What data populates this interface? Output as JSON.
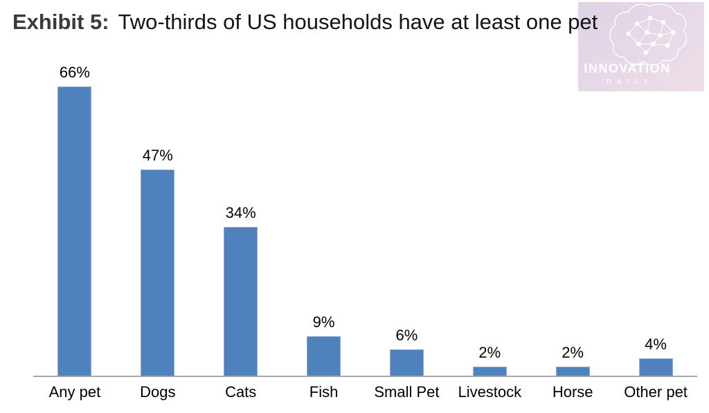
{
  "header": {
    "exhibit_label": "Exhibit 5:",
    "title": "Two-thirds of US households have at least one pet"
  },
  "logo": {
    "name": "INNOVATION",
    "subtitle": "DAILY",
    "gradient_start": "#ded3e6",
    "gradient_end": "#eedee8"
  },
  "chart_data": {
    "type": "bar",
    "title": "Two-thirds of US households have at least one pet",
    "categories": [
      "Any pet",
      "Dogs",
      "Cats",
      "Fish",
      "Small Pet",
      "Livestock",
      "Horse",
      "Other pet"
    ],
    "values": [
      66,
      47,
      34,
      9,
      6,
      2,
      2,
      4
    ],
    "value_labels": [
      "66%",
      "47%",
      "34%",
      "9%",
      "6%",
      "2%",
      "2%",
      "4%"
    ],
    "unit": "percent of US households",
    "xlabel": "",
    "ylabel": "",
    "ylim": [
      0,
      73
    ],
    "grid": false,
    "legend": false,
    "bar_color": "#4f81bd",
    "axis_line_color": "#a6a6a6",
    "label_color": "#000000"
  }
}
